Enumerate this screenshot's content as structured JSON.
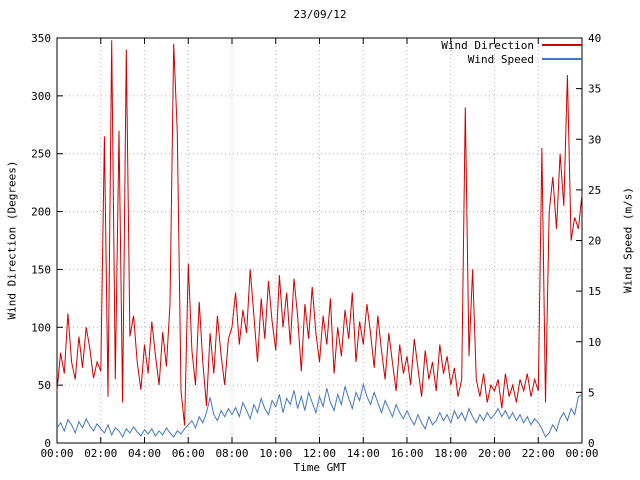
{
  "chart_data": {
    "type": "line",
    "title": "23/09/12",
    "xlabel": "Time GMT",
    "ylabel_left": "Wind Direction (Degrees)",
    "ylabel_right": "Wind Speed (m/s)",
    "grid": "on",
    "grid_color": "#b4b4b4",
    "border_color": "#000000",
    "background_color": "#ffffff",
    "legend_position": "top-right-inside",
    "x_start_minute": 0,
    "x_max_minutes": 1440,
    "sample_interval_minutes": 10,
    "x_ticks_minutes": [
      0,
      120,
      240,
      360,
      480,
      600,
      720,
      840,
      960,
      1080,
      1200,
      1320,
      1440
    ],
    "x_tick_labels": [
      "00:00",
      "02:00",
      "04:00",
      "06:00",
      "08:00",
      "10:00",
      "12:00",
      "14:00",
      "16:00",
      "18:00",
      "20:00",
      "22:00",
      "00:00"
    ],
    "y_left": {
      "min": 0,
      "max": 350,
      "ticks": [
        0,
        50,
        100,
        150,
        200,
        250,
        300,
        350
      ]
    },
    "y_right": {
      "min": 0,
      "max": 40,
      "ticks": [
        0,
        5,
        10,
        15,
        20,
        25,
        30,
        35,
        40
      ]
    },
    "series": [
      {
        "name": "Wind Direction",
        "axis": "left",
        "color": "#cc0000",
        "values": [
          45,
          78,
          60,
          112,
          70,
          55,
          92,
          65,
          100,
          82,
          56,
          70,
          62,
          265,
          40,
          348,
          55,
          270,
          35,
          340,
          92,
          110,
          70,
          46,
          85,
          60,
          105,
          76,
          50,
          96,
          66,
          120,
          345,
          268,
          45,
          15,
          155,
          80,
          50,
          122,
          70,
          32,
          95,
          60,
          110,
          76,
          50,
          90,
          100,
          130,
          85,
          115,
          95,
          150,
          110,
          70,
          125,
          90,
          140,
          105,
          80,
          145,
          100,
          130,
          85,
          142,
          110,
          62,
          120,
          90,
          135,
          95,
          70,
          110,
          85,
          125,
          60,
          100,
          75,
          115,
          90,
          130,
          70,
          105,
          85,
          120,
          95,
          65,
          110,
          80,
          55,
          95,
          70,
          45,
          85,
          60,
          75,
          50,
          90,
          65,
          40,
          80,
          55,
          70,
          45,
          85,
          60,
          75,
          50,
          65,
          40,
          55,
          290,
          75,
          150,
          55,
          40,
          60,
          35,
          50,
          45,
          55,
          30,
          60,
          40,
          50,
          35,
          55,
          45,
          60,
          40,
          55,
          45,
          255,
          35,
          200,
          230,
          185,
          250,
          205,
          318,
          175,
          195,
          185,
          215
        ]
      },
      {
        "name": "Wind Speed",
        "axis": "right",
        "color": "#4477bb",
        "values": [
          1.5,
          2.0,
          1.2,
          2.3,
          1.8,
          1.0,
          2.1,
          1.5,
          2.4,
          1.7,
          1.2,
          1.9,
          1.4,
          1.0,
          1.8,
          0.8,
          1.5,
          1.2,
          0.6,
          1.4,
          1.0,
          1.6,
          1.1,
          0.7,
          1.3,
          0.9,
          1.4,
          0.7,
          1.2,
          0.8,
          1.5,
          1.0,
          0.6,
          1.2,
          0.9,
          1.4,
          1.8,
          2.2,
          1.5,
          2.6,
          2.0,
          3.0,
          4.5,
          2.8,
          2.2,
          3.2,
          2.6,
          3.4,
          2.8,
          3.5,
          2.6,
          4.0,
          3.2,
          2.4,
          3.8,
          3.0,
          4.4,
          3.4,
          2.8,
          4.2,
          3.6,
          4.8,
          3.0,
          4.4,
          3.8,
          5.2,
          3.4,
          4.6,
          3.2,
          5.0,
          4.0,
          3.0,
          4.6,
          3.6,
          5.4,
          4.0,
          3.2,
          4.8,
          3.8,
          5.6,
          4.4,
          3.4,
          5.0,
          4.2,
          5.8,
          4.6,
          3.8,
          5.0,
          4.0,
          3.0,
          4.2,
          3.4,
          2.6,
          3.8,
          3.0,
          2.4,
          3.2,
          2.4,
          1.8,
          2.8,
          2.0,
          1.4,
          2.6,
          1.8,
          2.2,
          3.0,
          2.2,
          2.8,
          2.0,
          3.2,
          2.4,
          3.0,
          2.2,
          3.4,
          2.6,
          2.0,
          2.8,
          2.2,
          3.0,
          2.4,
          2.8,
          3.4,
          2.6,
          3.2,
          2.4,
          3.0,
          2.2,
          2.8,
          2.0,
          2.6,
          1.8,
          2.4,
          2.0,
          1.4,
          0.6,
          1.0,
          1.8,
          1.2,
          2.4,
          3.0,
          2.2,
          3.4,
          2.8,
          4.6,
          4.8
        ]
      }
    ]
  }
}
